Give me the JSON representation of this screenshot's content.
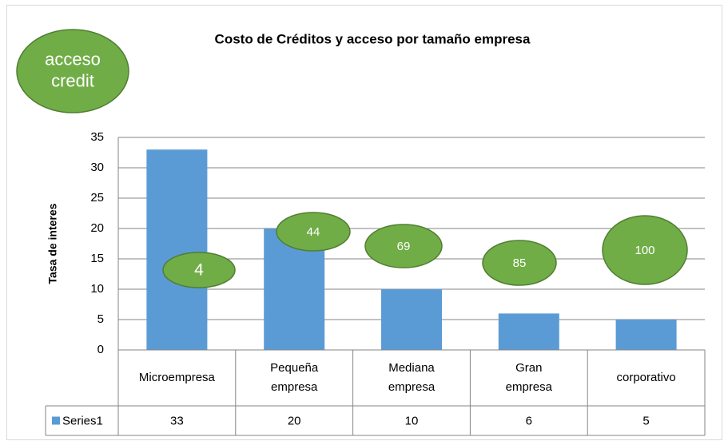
{
  "chart_data": {
    "type": "bar",
    "title": "Costo de Créditos y acceso por tamaño empresa",
    "y_label": "Tasa de interes",
    "categories": [
      "Microempresa",
      "Pequeña empresa",
      "Mediana empresa",
      "Gran empresa",
      "corporativo"
    ],
    "series": [
      {
        "name": "Series1",
        "color": "#5b9bd5",
        "values": [
          33,
          20,
          10,
          6,
          5
        ]
      }
    ],
    "bubble_series": {
      "name": "acceso credit",
      "color": "#70ad47",
      "values": [
        4,
        44,
        69,
        85,
        100
      ]
    },
    "ylim": [
      0,
      35
    ],
    "yticks": [
      0,
      5,
      10,
      15,
      20,
      25,
      30,
      35
    ],
    "grid": true,
    "data_table": true
  }
}
